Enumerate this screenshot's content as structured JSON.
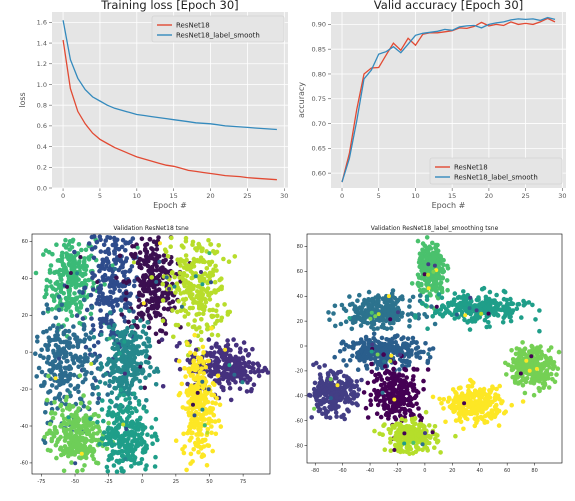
{
  "chart_data": [
    {
      "type": "line",
      "title": "Training loss [Epoch 30]",
      "xlabel": "Epoch #",
      "ylabel": "loss",
      "xlim": [
        -1.5,
        30.5
      ],
      "ylim": [
        0.0,
        1.7
      ],
      "xticks": [
        0,
        5,
        10,
        15,
        20,
        25,
        30
      ],
      "yticks": [
        0.0,
        0.2,
        0.4,
        0.6,
        0.8,
        1.0,
        1.2,
        1.4,
        1.6
      ],
      "grid": true,
      "legend_position": "top-right",
      "x": [
        0,
        1,
        2,
        3,
        4,
        5,
        6,
        7,
        8,
        9,
        10,
        11,
        12,
        13,
        14,
        15,
        16,
        17,
        18,
        19,
        20,
        21,
        22,
        23,
        24,
        25,
        26,
        27,
        28,
        29
      ],
      "series": [
        {
          "name": "ResNet18",
          "color": "#e24a33",
          "values": [
            1.43,
            0.96,
            0.74,
            0.62,
            0.53,
            0.47,
            0.43,
            0.39,
            0.36,
            0.33,
            0.3,
            0.28,
            0.26,
            0.24,
            0.22,
            0.21,
            0.19,
            0.17,
            0.16,
            0.15,
            0.14,
            0.13,
            0.12,
            0.115,
            0.11,
            0.1,
            0.095,
            0.09,
            0.085,
            0.08
          ]
        },
        {
          "name": "ResNet18_label_smooth",
          "color": "#348abd",
          "values": [
            1.62,
            1.24,
            1.06,
            0.95,
            0.88,
            0.84,
            0.8,
            0.77,
            0.75,
            0.73,
            0.71,
            0.7,
            0.69,
            0.68,
            0.67,
            0.66,
            0.65,
            0.64,
            0.63,
            0.625,
            0.62,
            0.61,
            0.6,
            0.595,
            0.59,
            0.585,
            0.58,
            0.575,
            0.57,
            0.565
          ]
        }
      ]
    },
    {
      "type": "line",
      "title": "Valid accuracy [Epoch 30]",
      "xlabel": "Epoch #",
      "ylabel": "accuracy",
      "xlim": [
        -1.5,
        30.5
      ],
      "ylim": [
        0.57,
        0.925
      ],
      "xticks": [
        0,
        5,
        10,
        15,
        20,
        25,
        30
      ],
      "yticks": [
        0.6,
        0.65,
        0.7,
        0.75,
        0.8,
        0.85,
        0.9
      ],
      "grid": true,
      "legend_position": "bottom-right",
      "x": [
        0,
        1,
        2,
        3,
        4,
        5,
        6,
        7,
        8,
        9,
        10,
        11,
        12,
        13,
        14,
        15,
        16,
        17,
        18,
        19,
        20,
        21,
        22,
        23,
        24,
        25,
        26,
        27,
        28,
        29
      ],
      "series": [
        {
          "name": "ResNet18",
          "color": "#e24a33",
          "values": [
            0.582,
            0.64,
            0.728,
            0.8,
            0.812,
            0.813,
            0.838,
            0.862,
            0.848,
            0.872,
            0.858,
            0.88,
            0.883,
            0.883,
            0.885,
            0.887,
            0.893,
            0.892,
            0.896,
            0.904,
            0.897,
            0.9,
            0.898,
            0.905,
            0.9,
            0.902,
            0.9,
            0.905,
            0.912,
            0.905
          ]
        },
        {
          "name": "ResNet18_label_smooth",
          "color": "#348abd",
          "values": [
            0.582,
            0.63,
            0.705,
            0.79,
            0.808,
            0.84,
            0.845,
            0.855,
            0.843,
            0.86,
            0.878,
            0.882,
            0.884,
            0.886,
            0.89,
            0.888,
            0.895,
            0.897,
            0.898,
            0.893,
            0.9,
            0.903,
            0.905,
            0.909,
            0.911,
            0.91,
            0.911,
            0.908,
            0.914,
            0.91
          ]
        }
      ]
    },
    {
      "type": "scatter",
      "title": "Validation ResNet18 tsne",
      "xlim": [
        -82,
        95
      ],
      "ylim": [
        -66,
        64
      ],
      "xticks": [
        -75,
        -50,
        -25,
        0,
        25,
        50,
        75
      ],
      "yticks": [
        -60,
        -40,
        -20,
        0,
        20,
        40,
        60
      ],
      "grid": false,
      "clusters": [
        {
          "color": "#3aba77",
          "cx": -53,
          "cy": 40,
          "sx": 9,
          "sy": 12
        },
        {
          "color": "#2e4c8c",
          "cx": -22,
          "cy": 36,
          "sx": 10,
          "sy": 18
        },
        {
          "color": "#3b0f50",
          "cx": 7,
          "cy": 37,
          "sx": 9,
          "sy": 14
        },
        {
          "color": "#b8dd2b",
          "cx": 40,
          "cy": 35,
          "sx": 11,
          "sy": 14
        },
        {
          "color": "#2c6b8e",
          "cx": -57,
          "cy": -8,
          "sx": 12,
          "sy": 14
        },
        {
          "color": "#24888c",
          "cx": -12,
          "cy": -6,
          "sx": 8,
          "sy": 11
        },
        {
          "color": "#45317e",
          "cx": 62,
          "cy": -8,
          "sx": 14,
          "sy": 7
        },
        {
          "color": "#fde725",
          "cx": 42,
          "cy": -28,
          "sx": 6,
          "sy": 15
        },
        {
          "color": "#6ece58",
          "cx": -50,
          "cy": -45,
          "sx": 10,
          "sy": 9
        },
        {
          "color": "#1f9e89",
          "cx": -12,
          "cy": -45,
          "sx": 9,
          "sy": 10
        }
      ]
    },
    {
      "type": "scatter",
      "title": "Validation ResNet18_label_smoothing tsne",
      "xlim": [
        -86,
        100
      ],
      "ylim": [
        -94,
        90
      ],
      "xticks": [
        -80,
        -60,
        -40,
        -20,
        0,
        20,
        40,
        60,
        80
      ],
      "yticks": [
        -80,
        -60,
        -40,
        -20,
        0,
        20,
        40,
        60,
        80
      ],
      "grid": false,
      "clusters": [
        {
          "color": "#4ac16d",
          "cx": 5,
          "cy": 60,
          "sx": 5,
          "sy": 11
        },
        {
          "color": "#2c738e",
          "cx": -34,
          "cy": 28,
          "sx": 13,
          "sy": 6
        },
        {
          "color": "#1f9e89",
          "cx": 40,
          "cy": 30,
          "sx": 17,
          "sy": 6
        },
        {
          "color": "#2a5e8c",
          "cx": -30,
          "cy": -5,
          "sx": 14,
          "sy": 6
        },
        {
          "color": "#75d054",
          "cx": 78,
          "cy": -16,
          "sx": 8,
          "sy": 8
        },
        {
          "color": "#433e85",
          "cx": -68,
          "cy": -38,
          "sx": 9,
          "sy": 8
        },
        {
          "color": "#440154",
          "cx": -20,
          "cy": -38,
          "sx": 9,
          "sy": 11
        },
        {
          "color": "#fde725",
          "cx": 36,
          "cy": -47,
          "sx": 10,
          "sy": 7
        },
        {
          "color": "#b5de2b",
          "cx": -10,
          "cy": -73,
          "sx": 9,
          "sy": 6
        }
      ]
    }
  ]
}
